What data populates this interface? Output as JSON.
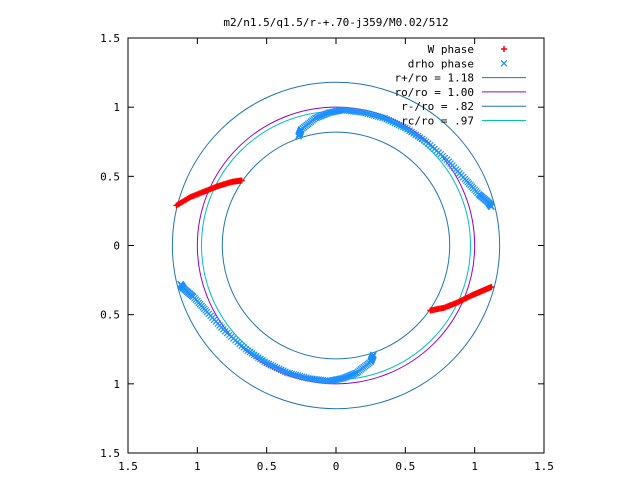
{
  "chart_data": {
    "type": "scatter",
    "title": "m2/n1.5/q1.5/r-+.70-j359/M0.02/512",
    "xlim": [
      -1.5,
      1.5
    ],
    "ylim": [
      -1.5,
      1.5
    ],
    "x_ticks": [
      -1.5,
      -1,
      -0.5,
      0,
      0.5,
      1,
      1.5
    ],
    "x_tick_labels": [
      "1.5",
      "1",
      "0.5",
      "0",
      "0.5",
      "1",
      "1.5"
    ],
    "y_ticks": [
      -1.5,
      -1,
      -0.5,
      0,
      0.5,
      1,
      1.5
    ],
    "y_tick_labels": [
      "1.5",
      "1",
      "0.5",
      "0",
      "0.5",
      "1",
      "1.5"
    ],
    "grid": false,
    "legend_position": "top-right",
    "colors": {
      "w_phase": "#ff0000",
      "drho_phase": "#1e90ff",
      "r_plus": "#1f77b4",
      "r_o": "#9400d3",
      "r_minus": "#1f77b4",
      "r_c": "#00c0c0"
    },
    "legend": [
      {
        "label": "W phase",
        "marker": "+",
        "color": "#ff0000"
      },
      {
        "label": "drho phase",
        "marker": "x",
        "color": "#1e90ff"
      },
      {
        "label": "r+/ro = 1.18",
        "marker": "line",
        "color": "#1f77b4"
      },
      {
        "label": "ro/ro = 1.00",
        "marker": "line",
        "color": "#9400d3"
      },
      {
        "label": "r-/ro = .82",
        "marker": "line",
        "color": "#1f77b4"
      },
      {
        "label": "rc/ro = .97",
        "marker": "line",
        "color": "#00c0c0"
      }
    ],
    "circles": [
      {
        "name": "r+/ro = 1.18",
        "radius": 1.18,
        "color": "#1f77b4"
      },
      {
        "name": "ro/ro = 1.00",
        "radius": 1.0,
        "color": "#9400d3"
      },
      {
        "name": "r-/ro = .82",
        "radius": 0.82,
        "color": "#1f77b4"
      },
      {
        "name": "rc/ro = .97",
        "radius": 0.97,
        "color": "#00c0c0"
      }
    ],
    "series": [
      {
        "name": "W phase",
        "marker": "+",
        "color": "#ff0000",
        "segments": [
          {
            "x": [
              -1.15,
              -1.05,
              -0.95,
              -0.85,
              -0.75,
              -0.68
            ],
            "y": [
              0.29,
              0.35,
              0.39,
              0.43,
              0.46,
              0.47
            ]
          },
          {
            "x": [
              0.68,
              0.78,
              0.88,
              0.98,
              1.05,
              1.12
            ],
            "y": [
              -0.47,
              -0.45,
              -0.41,
              -0.36,
              -0.33,
              -0.3
            ]
          }
        ]
      },
      {
        "name": "drho phase",
        "marker": "x",
        "color": "#1e90ff",
        "segments": [
          {
            "x": [
              -0.27,
              -0.25,
              -0.15,
              -0.05,
              0.05,
              0.2,
              0.35,
              0.5,
              0.65,
              0.8,
              0.93,
              1.03,
              1.1,
              1.12
            ],
            "y": [
              0.79,
              0.84,
              0.92,
              0.96,
              0.98,
              0.96,
              0.92,
              0.85,
              0.75,
              0.62,
              0.48,
              0.37,
              0.31,
              0.28
            ]
          },
          {
            "x": [
              0.27,
              0.25,
              0.15,
              0.05,
              -0.05,
              -0.2,
              -0.35,
              -0.5,
              -0.65,
              -0.8,
              -0.93,
              -1.03,
              -1.1,
              -1.12
            ],
            "y": [
              -0.79,
              -0.84,
              -0.92,
              -0.96,
              -0.98,
              -0.96,
              -0.92,
              -0.85,
              -0.75,
              -0.62,
              -0.48,
              -0.37,
              -0.31,
              -0.28
            ]
          }
        ]
      }
    ]
  }
}
